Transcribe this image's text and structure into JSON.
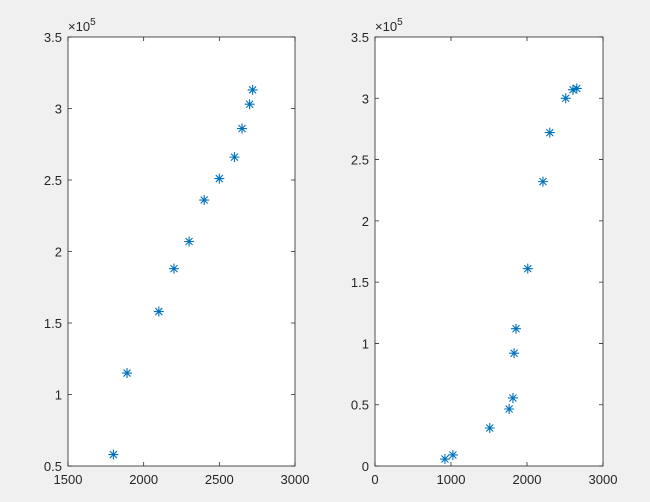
{
  "chart_data": [
    {
      "type": "scatter",
      "color": "#0072bd",
      "x": [
        1800,
        1890,
        2100,
        2200,
        2300,
        2400,
        2500,
        2600,
        2650,
        2700,
        2720
      ],
      "values": [
        58000,
        115000,
        158000,
        188000,
        207000,
        236000,
        251000,
        266000,
        286000,
        303000,
        313000
      ],
      "xlim": [
        1500,
        3000
      ],
      "xticks": [
        1500,
        2000,
        2500,
        3000
      ],
      "ylim": [
        50000,
        350000
      ],
      "yticks": [
        {
          "value": 50000,
          "label": "0.5"
        },
        {
          "value": 100000,
          "label": "1"
        },
        {
          "value": 150000,
          "label": "1.5"
        },
        {
          "value": 200000,
          "label": "2"
        },
        {
          "value": 250000,
          "label": "2.5"
        },
        {
          "value": 300000,
          "label": "3"
        },
        {
          "value": 350000,
          "label": "3.5"
        }
      ],
      "y_exponent_base": "×10",
      "y_exponent": "5"
    },
    {
      "type": "scatter",
      "color": "#0072bd",
      "x": [
        920,
        1025,
        1510,
        1765,
        1815,
        1830,
        1855,
        2010,
        2210,
        2300,
        2510,
        2605,
        2655
      ],
      "values": [
        5700,
        9000,
        31000,
        46500,
        55500,
        92000,
        112000,
        161000,
        232000,
        272000,
        300000,
        307000,
        308000
      ],
      "xlim": [
        0,
        3000
      ],
      "xticks": [
        0,
        1000,
        2000,
        3000
      ],
      "ylim": [
        0,
        350000
      ],
      "yticks": [
        0,
        {
          "value": 50000,
          "label": "0.5"
        },
        {
          "value": 100000,
          "label": "1"
        },
        {
          "value": 150000,
          "label": "1.5"
        },
        {
          "value": 200000,
          "label": "2"
        },
        {
          "value": 250000,
          "label": "2.5"
        },
        {
          "value": 300000,
          "label": "3"
        },
        {
          "value": 350000,
          "label": "3.5"
        }
      ],
      "y_exponent_base": "×10",
      "y_exponent": "5"
    }
  ]
}
